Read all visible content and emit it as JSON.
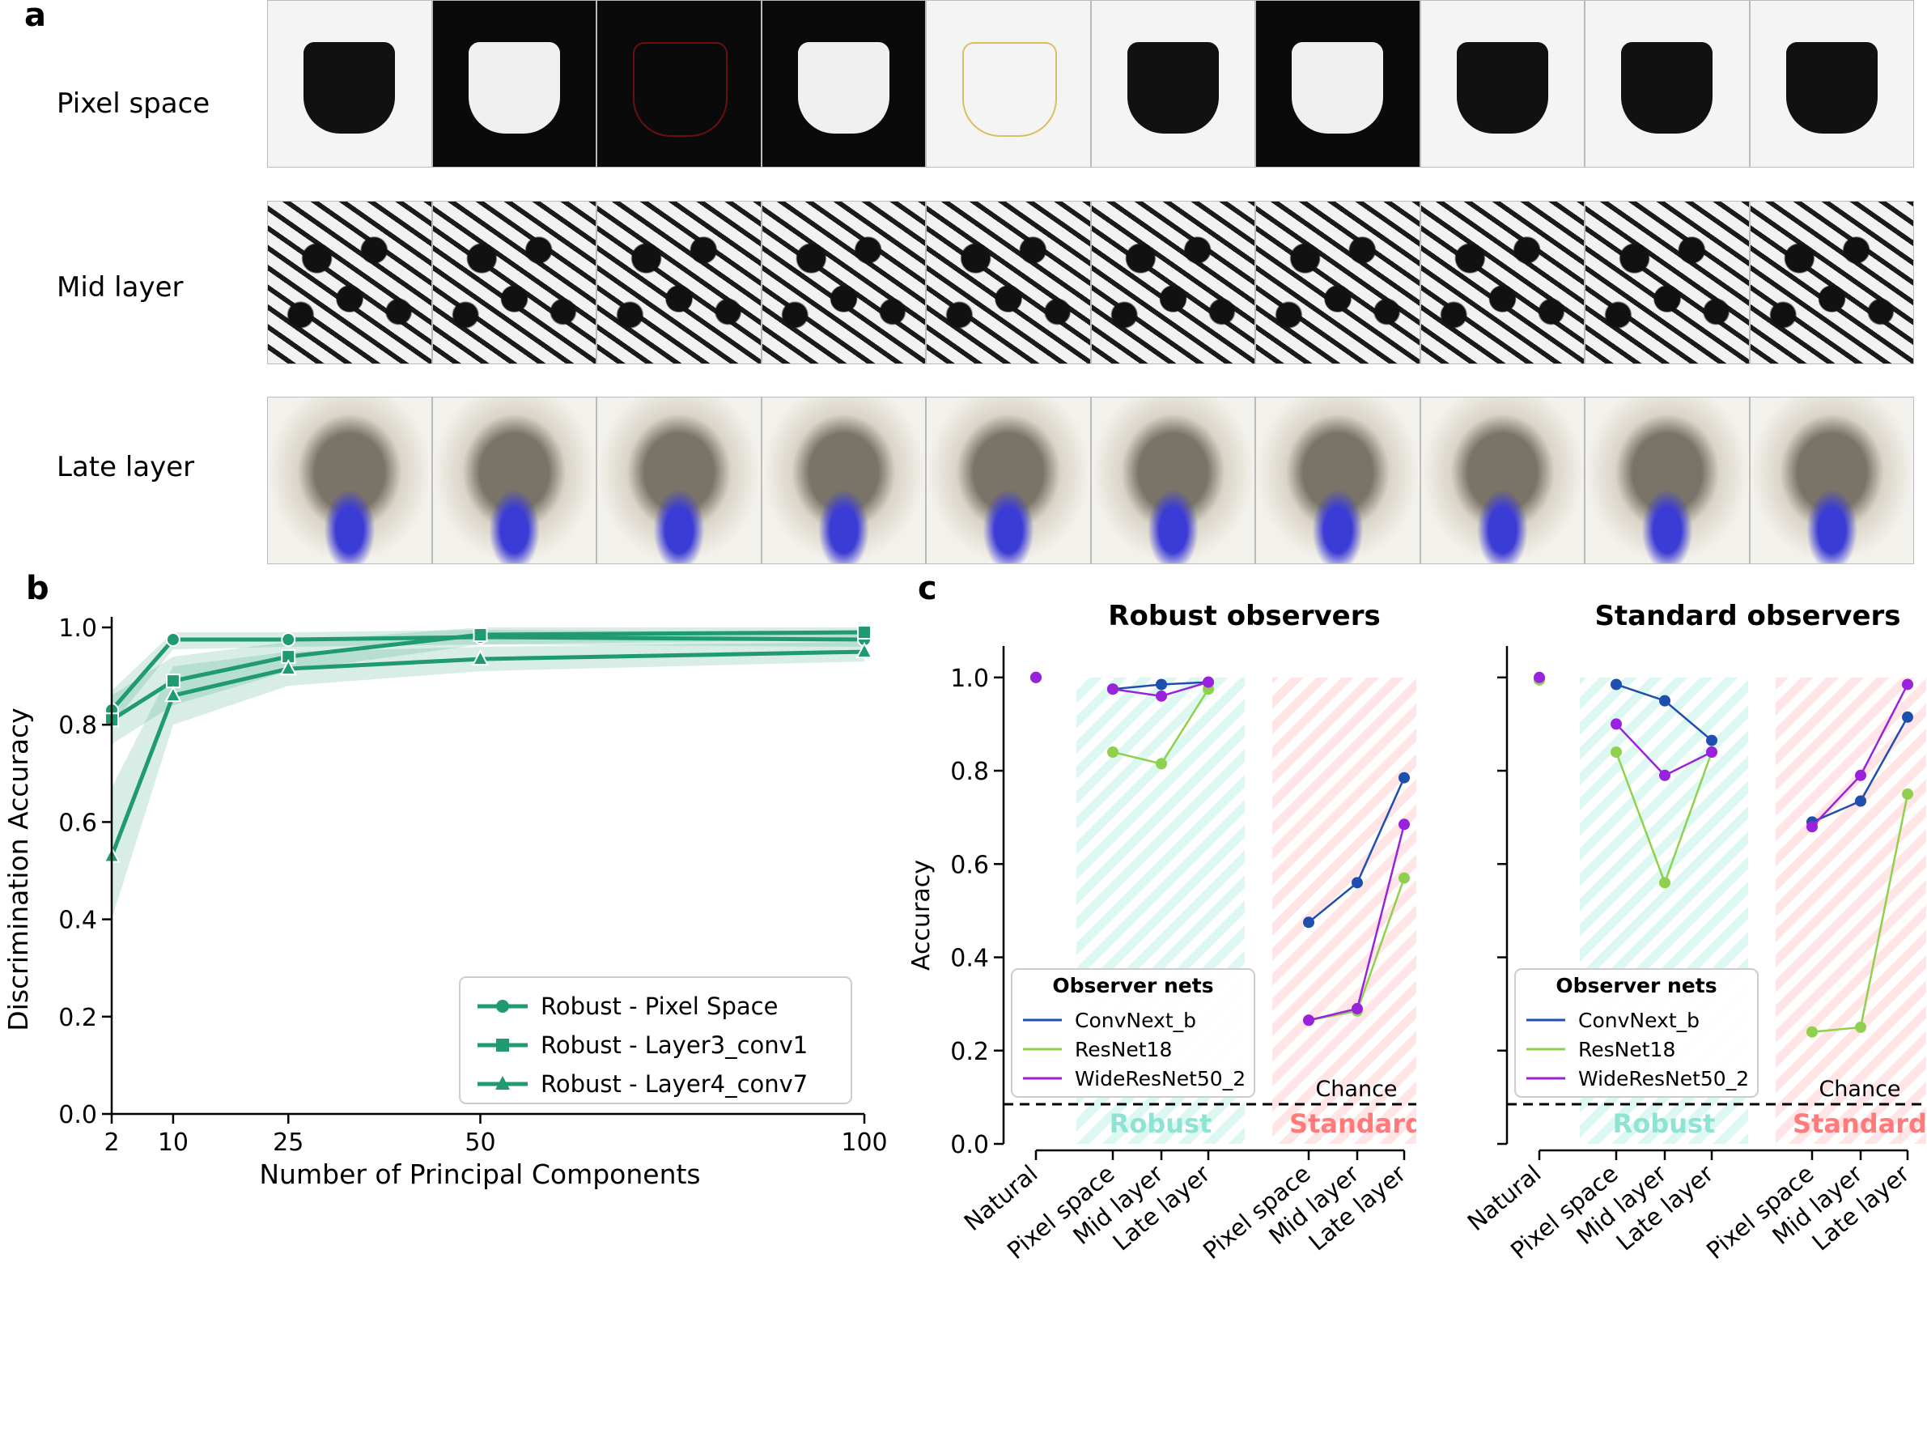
{
  "panel_a": {
    "letter": "a",
    "rows": [
      {
        "label": "Pixel space",
        "style": "pixel"
      },
      {
        "label": "Mid layer",
        "style": "mid"
      },
      {
        "label": "Late layer",
        "style": "late"
      }
    ],
    "images_per_row": 10
  },
  "chart_data": [
    {
      "letter": "b",
      "type": "line",
      "xlabel": "Number of Principal Components",
      "ylabel": "Discrimination Accuracy",
      "x": [
        2,
        10,
        25,
        50,
        100
      ],
      "xticks": [
        2,
        10,
        25,
        50,
        100
      ],
      "xlim": [
        2,
        100
      ],
      "ylim": [
        0.0,
        1.0
      ],
      "yticks": [
        "0.0",
        "0.2",
        "0.4",
        "0.6",
        "0.8",
        "1.0"
      ],
      "legend_position": "bottom-right",
      "color": "#1f9a72",
      "series": [
        {
          "name": "Robust - Pixel Space",
          "marker": "circle",
          "values": [
            0.83,
            0.975,
            0.975,
            0.98,
            0.975
          ],
          "band": [
            [
              0.8,
              0.87
            ],
            [
              0.955,
              0.99
            ],
            [
              0.96,
              0.99
            ],
            [
              0.965,
              0.995
            ],
            [
              0.96,
              0.99
            ]
          ]
        },
        {
          "name": "Robust - Layer3_conv1",
          "marker": "square",
          "values": [
            0.81,
            0.89,
            0.94,
            0.985,
            0.99
          ],
          "band": [
            [
              0.76,
              0.86
            ],
            [
              0.84,
              0.94
            ],
            [
              0.91,
              0.97
            ],
            [
              0.965,
              1.0
            ],
            [
              0.975,
              1.0
            ]
          ]
        },
        {
          "name": "Robust - Layer4_conv7",
          "marker": "triangle",
          "values": [
            0.53,
            0.86,
            0.915,
            0.935,
            0.95
          ],
          "band": [
            [
              0.4,
              0.67
            ],
            [
              0.8,
              0.92
            ],
            [
              0.88,
              0.95
            ],
            [
              0.91,
              0.96
            ],
            [
              0.93,
              0.97
            ]
          ]
        }
      ]
    },
    {
      "letter": "c",
      "type": "line",
      "title": "Robust observers",
      "ylabel": "Accuracy",
      "ylim": [
        0.0,
        1.05
      ],
      "yticks": [
        "0.0",
        "0.2",
        "0.4",
        "0.6",
        "0.8",
        "1.0"
      ],
      "categories": [
        "Natural",
        "Pixel space",
        "Mid layer",
        "Late layer",
        "Pixel space",
        "Mid layer",
        "Late layer"
      ],
      "group_labels": {
        "robust": "Robust",
        "standard": "Standard"
      },
      "chance_label": "Chance",
      "chance_value": 0.085,
      "legend_title": "Observer nets",
      "legend_position": "lower-left",
      "series": [
        {
          "name": "ConvNext_b",
          "color": "#1f4fae",
          "natural": 1.0,
          "robust": [
            0.975,
            0.985,
            0.99
          ],
          "standard": [
            0.475,
            0.56,
            0.785
          ]
        },
        {
          "name": "ResNet18",
          "color": "#8fd14f",
          "natural": 1.0,
          "robust": [
            0.84,
            0.815,
            0.975
          ],
          "standard": [
            0.265,
            0.285,
            0.57
          ]
        },
        {
          "name": "WideResNet50_2",
          "color": "#9b22dd",
          "natural": 1.0,
          "robust": [
            0.975,
            0.96,
            0.99
          ],
          "standard": [
            0.265,
            0.29,
            0.685
          ]
        }
      ]
    },
    {
      "type": "line",
      "title": "Standard observers",
      "ylim": [
        0.0,
        1.05
      ],
      "categories": [
        "Natural",
        "Pixel space",
        "Mid layer",
        "Late layer",
        "Pixel space",
        "Mid layer",
        "Late layer"
      ],
      "group_labels": {
        "robust": "Robust",
        "standard": "Standard"
      },
      "chance_label": "Chance",
      "chance_value": 0.085,
      "legend_title": "Observer nets",
      "legend_position": "lower-left",
      "series": [
        {
          "name": "ConvNext_b",
          "color": "#1f4fae",
          "natural": 0.995,
          "robust": [
            0.985,
            0.95,
            0.865
          ],
          "standard": [
            0.69,
            0.735,
            0.915
          ]
        },
        {
          "name": "ResNet18",
          "color": "#8fd14f",
          "natural": 0.995,
          "robust": [
            0.84,
            0.56,
            0.84
          ],
          "standard": [
            0.24,
            0.25,
            0.75
          ]
        },
        {
          "name": "WideResNet50_2",
          "color": "#9b22dd",
          "natural": 1.0,
          "robust": [
            0.9,
            0.79,
            0.84
          ],
          "standard": [
            0.68,
            0.79,
            0.985
          ]
        }
      ]
    }
  ],
  "colors": {
    "robust_band": "#9ee6d8",
    "standard_band": "#ffb3b3",
    "robust_text": "#8fe3d3",
    "standard_text": "#ff7b7b"
  }
}
